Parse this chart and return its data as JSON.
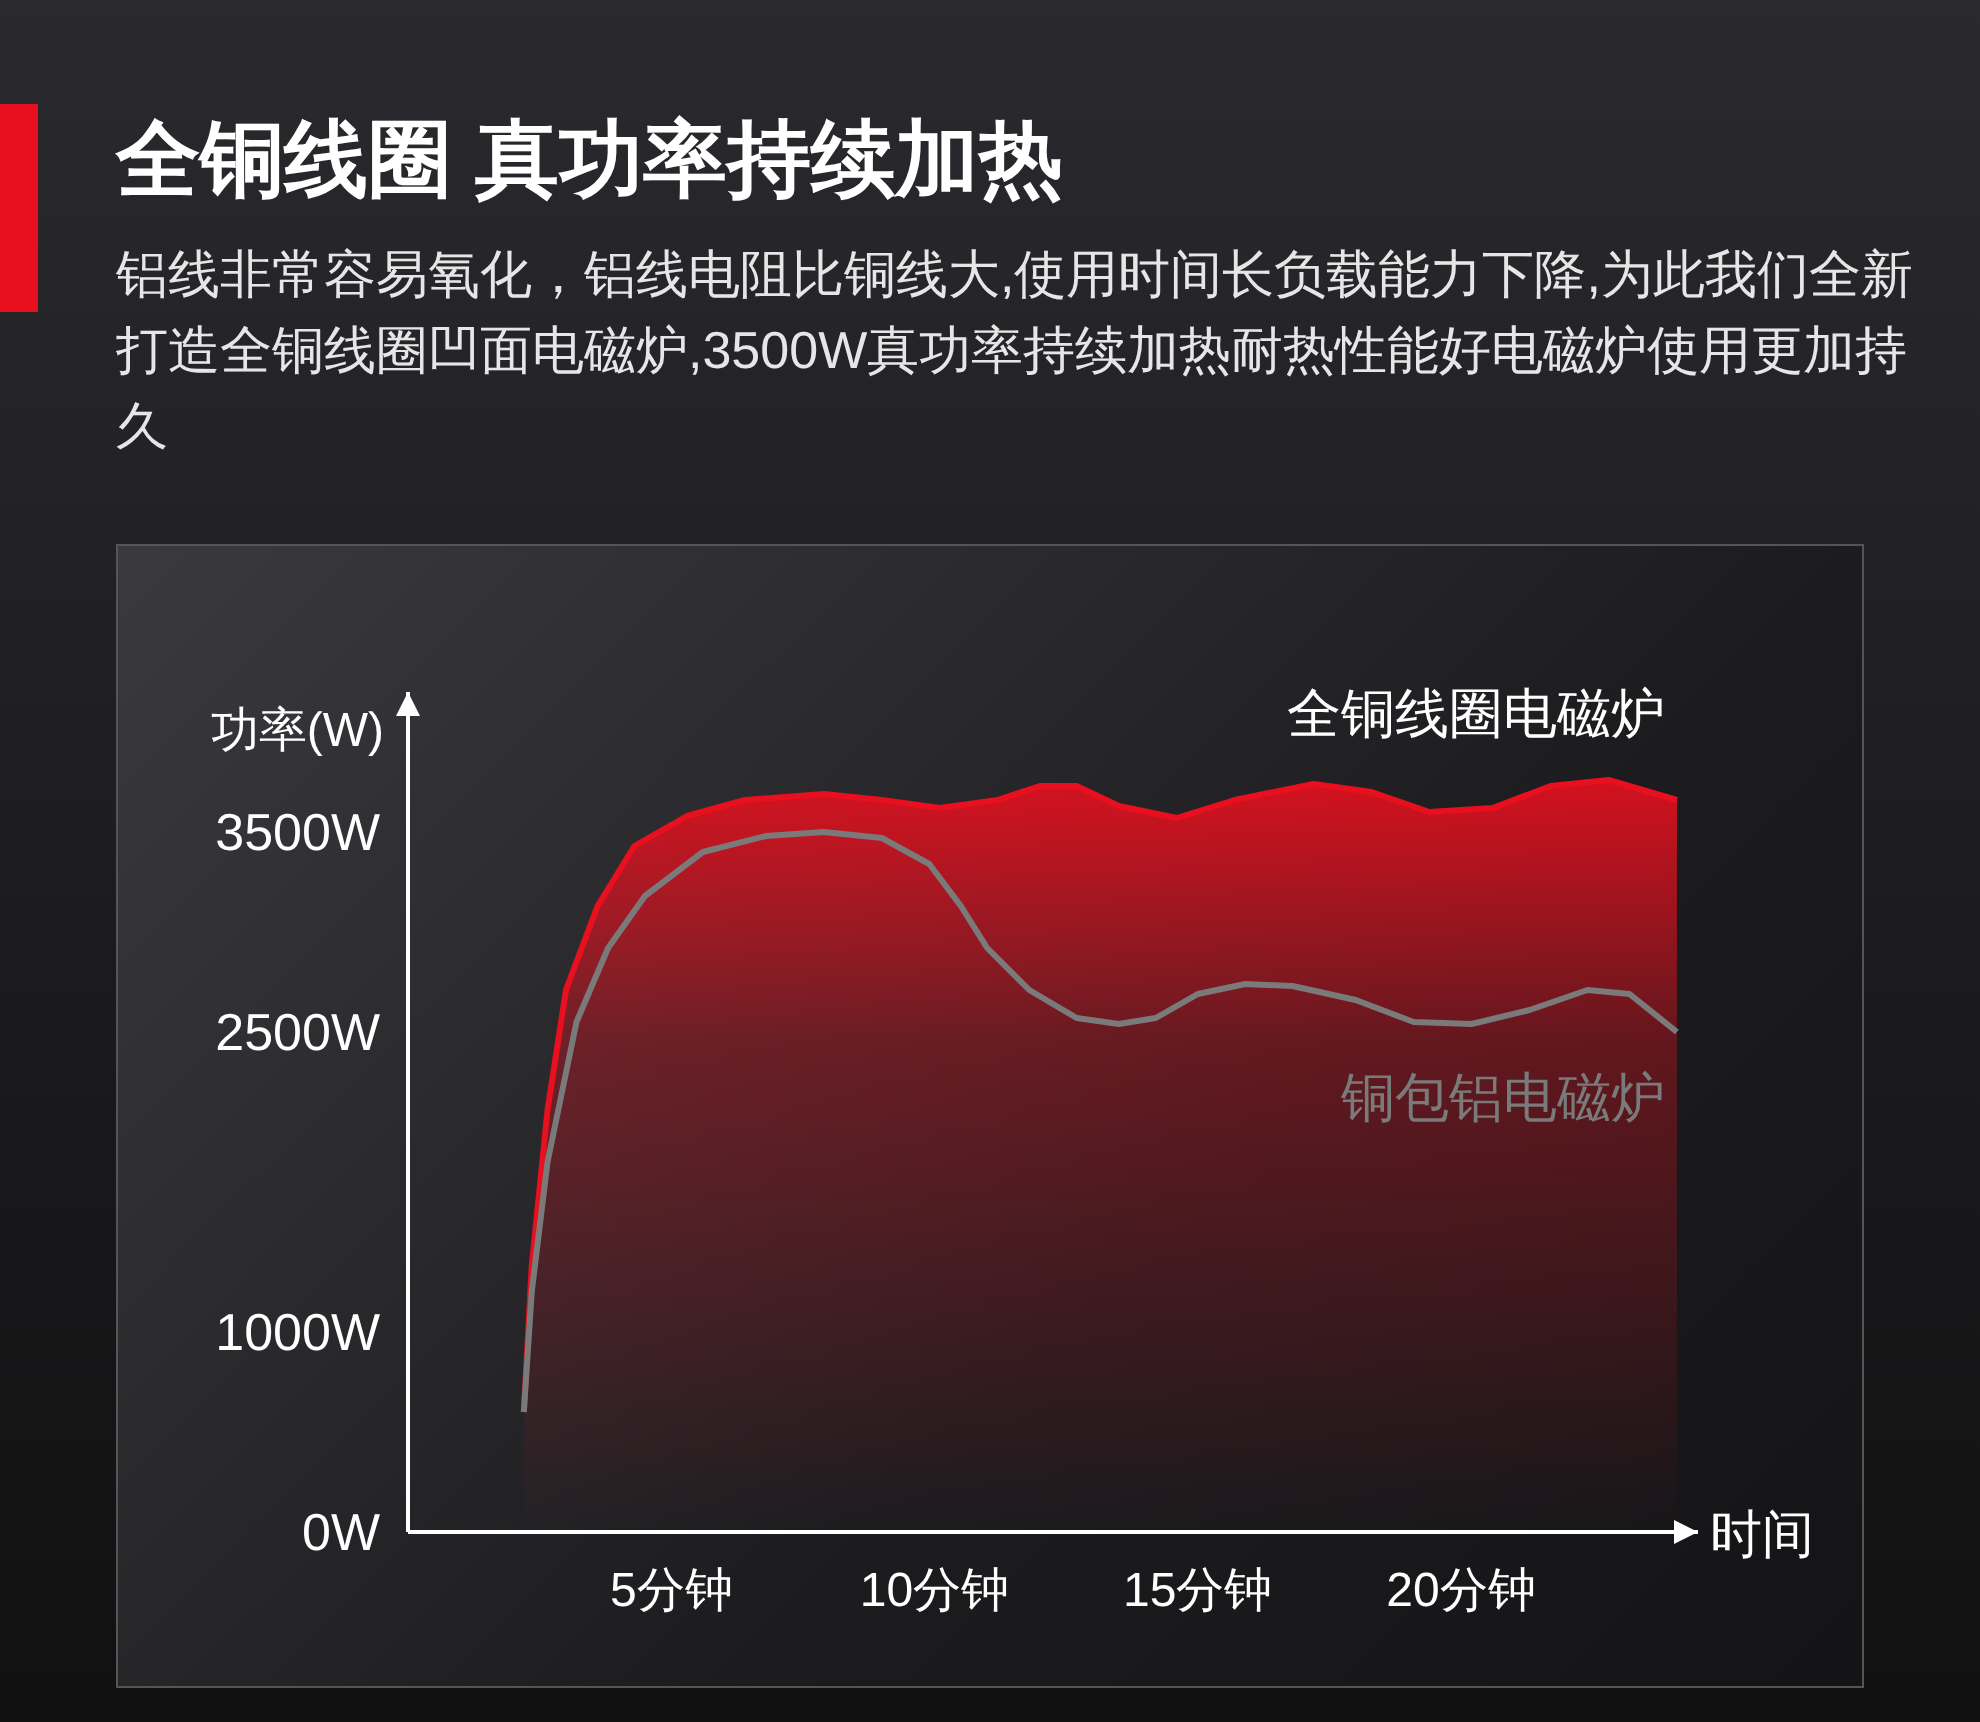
{
  "chart_data": {
    "type": "area",
    "title": "全铜线圈 真功率持续加热",
    "subtitle": "铝线非常容易氧化，铝线电阻比铜线大,使用时间长负载能力下降,为此我们全新打造全铜线圈凹面电磁炉,3500W真功率持续加热耐热性能好电磁炉使用更加持久",
    "xlabel": "时间",
    "ylabel": "功率(W)",
    "xlim": [
      0,
      24.5
    ],
    "ylim": [
      0,
      4200
    ],
    "xticks": [
      {
        "value": 5,
        "label": "5分钟"
      },
      {
        "value": 10,
        "label": "10分钟"
      },
      {
        "value": 15,
        "label": "15分钟"
      },
      {
        "value": 20,
        "label": "20分钟"
      }
    ],
    "yticks": [
      {
        "value": 0,
        "label": "0W"
      },
      {
        "value": 1000,
        "label": "1000W"
      },
      {
        "value": 2500,
        "label": "2500W"
      },
      {
        "value": 3500,
        "label": "3500W"
      }
    ],
    "series": [
      {
        "name": "全铜线圈电磁炉",
        "type": "area",
        "color": "#e8101e",
        "x": [
          2.2,
          2.35,
          2.65,
          3.0,
          3.6,
          4.3,
          5.3,
          6.4,
          7.9,
          9.0,
          10.1,
          11.2,
          12.0,
          12.7,
          13.5,
          14.6,
          15.7,
          17.2,
          18.3,
          19.4,
          20.6,
          21.7,
          22.8,
          24.1
        ],
        "values": [
          600,
          1330,
          2110,
          2710,
          3130,
          3430,
          3580,
          3660,
          3690,
          3660,
          3620,
          3660,
          3730,
          3730,
          3630,
          3570,
          3660,
          3740,
          3700,
          3600,
          3620,
          3730,
          3760,
          3660
        ]
      },
      {
        "name": "铜包铝电磁炉",
        "type": "line",
        "color": "#7a7a7a",
        "x": [
          2.2,
          2.35,
          2.65,
          3.2,
          3.8,
          4.5,
          5.6,
          6.8,
          7.9,
          9.0,
          9.9,
          10.5,
          11.0,
          11.8,
          12.7,
          13.5,
          14.2,
          15.0,
          15.9,
          16.8,
          18.0,
          19.1,
          20.2,
          21.3,
          22.4,
          23.2,
          24.1
        ],
        "values": [
          600,
          1200,
          1850,
          2550,
          2920,
          3180,
          3400,
          3480,
          3500,
          3470,
          3340,
          3130,
          2920,
          2710,
          2570,
          2540,
          2570,
          2690,
          2740,
          2730,
          2660,
          2550,
          2540,
          2610,
          2710,
          2690,
          2500
        ]
      }
    ]
  }
}
